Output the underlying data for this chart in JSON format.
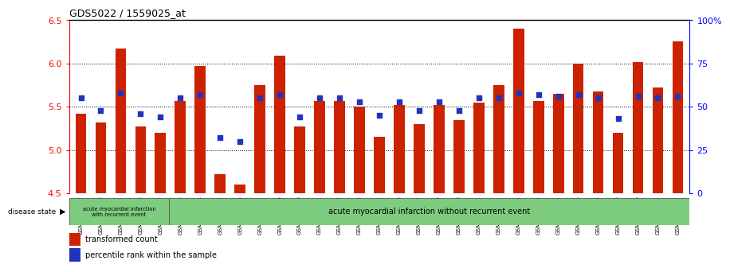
{
  "title": "GDS5022 / 1559025_at",
  "samples": [
    "GSM1167072",
    "GSM1167078",
    "GSM1167081",
    "GSM1167088",
    "GSM1167097",
    "GSM1167073",
    "GSM1167074",
    "GSM1167075",
    "GSM1167076",
    "GSM1167077",
    "GSM1167079",
    "GSM1167080",
    "GSM1167082",
    "GSM1167083",
    "GSM1167084",
    "GSM1167085",
    "GSM1167086",
    "GSM1167087",
    "GSM1167089",
    "GSM1167090",
    "GSM1167091",
    "GSM1167092",
    "GSM1167093",
    "GSM1167094",
    "GSM1167095",
    "GSM1167096",
    "GSM1167098",
    "GSM1167099",
    "GSM1167100",
    "GSM1167101",
    "GSM1167122"
  ],
  "bar_values": [
    5.42,
    5.32,
    6.17,
    5.27,
    5.2,
    5.57,
    5.97,
    4.72,
    4.6,
    5.75,
    6.09,
    5.27,
    5.57,
    5.57,
    5.5,
    5.15,
    5.52,
    5.3,
    5.52,
    5.35,
    5.55,
    5.75,
    6.4,
    5.57,
    5.65,
    6.0,
    5.68,
    5.2,
    6.02,
    5.72,
    6.25
  ],
  "percentile_values": [
    55,
    48,
    58,
    46,
    44,
    55,
    57,
    32,
    30,
    55,
    57,
    44,
    55,
    55,
    53,
    45,
    53,
    48,
    53,
    48,
    55,
    55,
    58,
    57,
    56,
    57,
    55,
    43,
    56,
    55,
    56
  ],
  "ylim_left": [
    4.5,
    6.5
  ],
  "ylim_right": [
    0,
    100
  ],
  "yticks_left": [
    4.5,
    5.0,
    5.5,
    6.0,
    6.5
  ],
  "yticks_right": [
    0,
    25,
    50,
    75,
    100
  ],
  "ytick_right_labels": [
    "0",
    "25",
    "50",
    "75",
    "100%"
  ],
  "bar_color": "#cc2200",
  "marker_color": "#2233bb",
  "group1_count": 5,
  "group1_label": "acute myocardial infarction\nwith recurrent event",
  "group2_label": "acute myocardial infarction without recurrent event",
  "disease_state_label": "disease state",
  "legend_bar_label": "transformed count",
  "legend_marker_label": "percentile rank within the sample",
  "group_bg": "#7dcc7d",
  "bar_baseline": 4.5,
  "plot_bg": "#ffffff",
  "fig_bg": "#ffffff"
}
